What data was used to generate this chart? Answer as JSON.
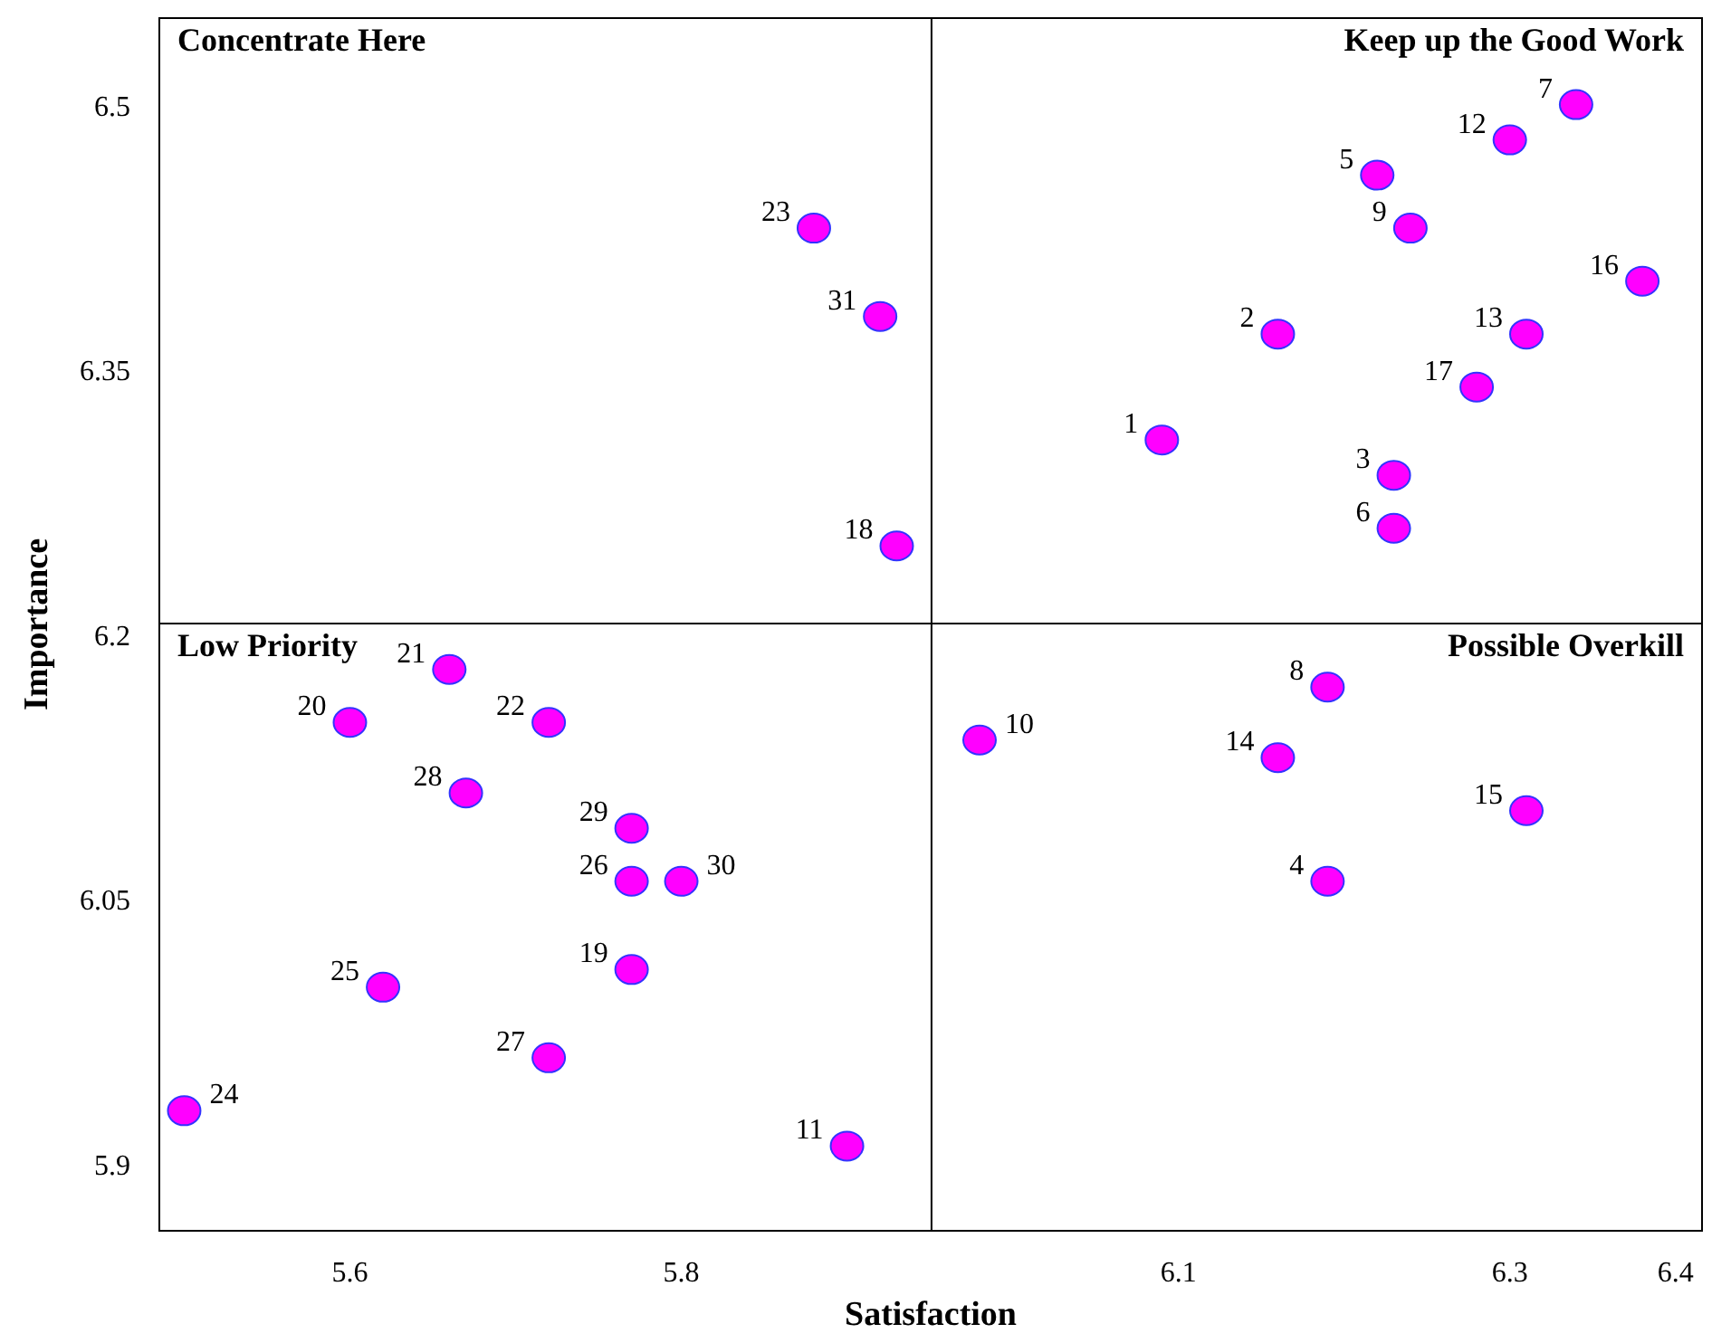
{
  "chart_data": {
    "type": "scatter",
    "xlabel": "Satisfaction",
    "ylabel": "Importance",
    "xlim": [
      5.485,
      6.416
    ],
    "ylim": [
      5.862,
      6.549
    ],
    "xticks": [
      5.6,
      5.8,
      6.1,
      6.3,
      6.4
    ],
    "yticks": [
      5.9,
      6.05,
      6.2,
      6.35,
      6.5
    ],
    "grid": false,
    "marker": "circle",
    "ref_lines": [
      {
        "axis": "x",
        "value": 5.951,
        "color": "#000000"
      },
      {
        "axis": "y",
        "value": 6.206,
        "color": "#000000"
      }
    ],
    "series": [
      {
        "color": "#ff00ff",
        "x": [
          6.09,
          6.16,
          6.23,
          6.19,
          6.22,
          6.23,
          6.34,
          6.19,
          6.24,
          5.98,
          5.9,
          6.3,
          6.31,
          6.16,
          6.31,
          6.38,
          6.28,
          5.93,
          5.77,
          5.6,
          5.66,
          5.72,
          5.88,
          5.5,
          5.62,
          5.77,
          5.72,
          5.67,
          5.77,
          5.8,
          5.92
        ],
        "values": [
          6.31,
          6.37,
          6.29,
          6.06,
          6.46,
          6.26,
          6.5,
          6.17,
          6.43,
          6.14,
          5.91,
          6.48,
          6.37,
          6.13,
          6.1,
          6.4,
          6.34,
          6.25,
          6.01,
          6.15,
          6.18,
          6.15,
          6.43,
          5.93,
          6.0,
          6.06,
          5.96,
          6.11,
          6.09,
          6.06,
          6.38
        ]
      }
    ],
    "annotations": [
      "Concentrate Here",
      "Keep up the Good Work",
      "Low Priority",
      "Possible Overkill",
      {
        "text": "1",
        "x": 6.09,
        "y": 6.31
      },
      {
        "text": "2",
        "x": 6.16,
        "y": 6.37
      },
      {
        "text": "3",
        "x": 6.23,
        "y": 6.29
      },
      {
        "text": "4",
        "x": 6.19,
        "y": 6.06
      },
      {
        "text": "5",
        "x": 6.22,
        "y": 6.46
      },
      {
        "text": "6",
        "x": 6.23,
        "y": 6.26
      },
      {
        "text": "7",
        "x": 6.34,
        "y": 6.5
      },
      {
        "text": "8",
        "x": 6.19,
        "y": 6.17
      },
      {
        "text": "9",
        "x": 6.24,
        "y": 6.43
      },
      {
        "text": "10",
        "x": 5.98,
        "y": 6.14
      },
      {
        "text": "11",
        "x": 5.9,
        "y": 5.91
      },
      {
        "text": "12",
        "x": 6.3,
        "y": 6.48
      },
      {
        "text": "13",
        "x": 6.31,
        "y": 6.37
      },
      {
        "text": "14",
        "x": 6.16,
        "y": 6.13
      },
      {
        "text": "15",
        "x": 6.31,
        "y": 6.1
      },
      {
        "text": "16",
        "x": 6.38,
        "y": 6.4
      },
      {
        "text": "17",
        "x": 6.28,
        "y": 6.34
      },
      {
        "text": "18",
        "x": 5.93,
        "y": 6.25
      },
      {
        "text": "19",
        "x": 5.77,
        "y": 6.01
      },
      {
        "text": "20",
        "x": 5.6,
        "y": 6.15
      },
      {
        "text": "21",
        "x": 5.66,
        "y": 6.18
      },
      {
        "text": "22",
        "x": 5.72,
        "y": 6.15
      },
      {
        "text": "23",
        "x": 5.88,
        "y": 6.43
      },
      {
        "text": "24",
        "x": 5.5,
        "y": 5.93
      },
      {
        "text": "25",
        "x": 5.62,
        "y": 6.0
      },
      {
        "text": "26",
        "x": 5.77,
        "y": 6.06
      },
      {
        "text": "27",
        "x": 5.72,
        "y": 5.96
      },
      {
        "text": "28",
        "x": 5.67,
        "y": 6.11
      },
      {
        "text": "29",
        "x": 5.77,
        "y": 6.09
      },
      {
        "text": "30",
        "x": 5.8,
        "y": 6.06
      },
      {
        "text": "31",
        "x": 5.92,
        "y": 6.38
      }
    ]
  }
}
